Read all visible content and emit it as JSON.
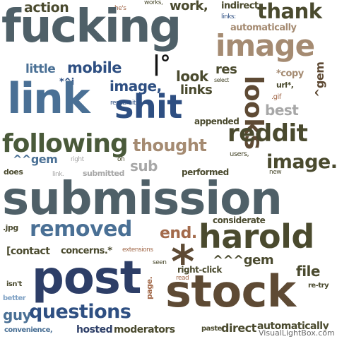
{
  "colors": {
    "slate": "#4f6068",
    "olive": "#4a4a2e",
    "brown": "#5e4a34",
    "blue": "#2e4f82",
    "steel": "#4a7095",
    "tan": "#a58b72",
    "rust": "#a36a4b",
    "grey": "#a7a7a7",
    "lightblue": "#7fa1c4",
    "navy": "#2d3e67",
    "green": "#4a5a3a",
    "black": "#111111"
  },
  "words": {
    "action": "action",
    "hes": "he's",
    "works": "works,",
    "work": "work,",
    "indirect": "indirect",
    "thank": "thank",
    "links1": "links:",
    "fucking": "fucking",
    "automatically1": "automatically",
    "image1": "image",
    "degree": "|°",
    "little": "little",
    "mobile": "mobile",
    "res": "res",
    "look": "look",
    "select": "select",
    "ti": "*^i",
    "copy": "*copy",
    "image2": "image,",
    "url": "url*,",
    "links2": "links",
    "gem1": "^gem",
    "looks": "looks",
    "link": "link",
    "resubmit": "resubmit",
    "shit": "shit",
    "best": "best",
    "gif": ".gif",
    "appended": "appended",
    "reddit": "reddit",
    "following": "following",
    "thought": "thought",
    "users": "users,",
    "image3": "image.",
    "gem2": "^^gem",
    "right": "right",
    "oh": "oh",
    "sub": "sub",
    "new": "new",
    "does": "does",
    "link2": "link.",
    "submitted": "submitted",
    "performed": "performed",
    "submission": "submission",
    "considerate": "considerate",
    "jpg": ".jpg",
    "removed": "removed",
    "harold": "harold",
    "end": "end.",
    "contact": "[contact",
    "concerns": "concerns.*",
    "extensions": "extensions",
    "asterisk": "*",
    "gem3": "^^^gem",
    "seen": "seen",
    "post": "post",
    "rightclick": "right-click",
    "file": "file",
    "read": "read",
    "page": "page.",
    "isnt": "isn't",
    "stock": "stock",
    "retry": "re-try",
    "better": "better",
    "guy": "guy",
    "questions": "questions",
    "convenience": "convenience,",
    "hosted": "hosted",
    "moderators": "moderators",
    "paste": "paste",
    "direct": "direct",
    "automatically2": "automatically"
  },
  "watermark": "VisualLightBox.com"
}
